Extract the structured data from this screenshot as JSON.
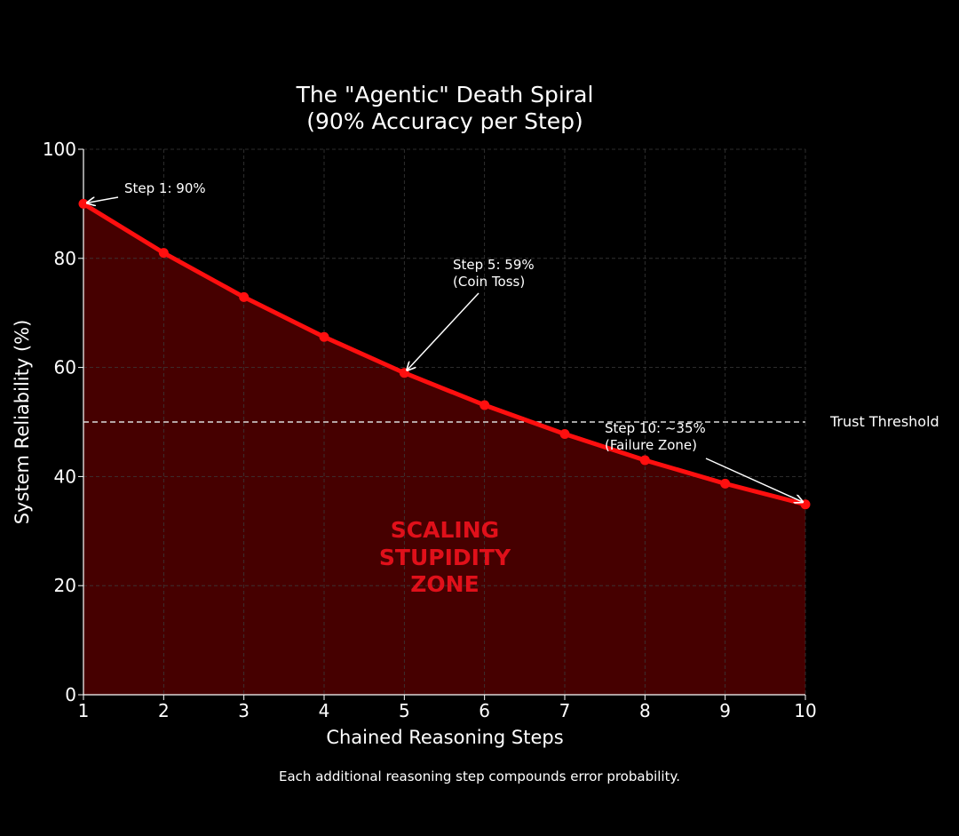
{
  "chart_data": {
    "type": "line",
    "title": [
      "The \"Agentic\" Death Spiral",
      "(90% Accuracy per Step)"
    ],
    "xlabel": "Chained Reasoning Steps",
    "ylabel": "System Reliability (%)",
    "xlim": [
      1,
      10
    ],
    "ylim": [
      0,
      100
    ],
    "xticks": [
      "1",
      "2",
      "3",
      "4",
      "5",
      "6",
      "7",
      "8",
      "9",
      "10"
    ],
    "yticks": [
      "0",
      "20",
      "40",
      "60",
      "80",
      "100"
    ],
    "grid": true,
    "series": [
      {
        "name": "System Reliability",
        "x": [
          1,
          2,
          3,
          4,
          5,
          6,
          7,
          8,
          9,
          10
        ],
        "y": [
          90,
          81,
          72.9,
          65.6,
          59,
          53.1,
          47.8,
          43,
          38.7,
          34.9
        ]
      }
    ],
    "threshold": {
      "value": 50,
      "label": "Trust Threshold"
    },
    "annotations": {
      "step1": {
        "lines": [
          "Step 1: 90%"
        ],
        "x": 1,
        "y": 90
      },
      "step5": {
        "lines": [
          "Step 5: 59%",
          "(Coin Toss)"
        ],
        "x": 5,
        "y": 59
      },
      "step10": {
        "lines": [
          "Step 10: ~35%",
          "(Failure Zone)"
        ],
        "x": 10,
        "y": 35
      }
    },
    "zone_label": [
      "SCALING",
      "STUPIDITY",
      "ZONE"
    ],
    "footnote": "Each additional reasoning step compounds error probability.",
    "colors": {
      "background": "#000000",
      "line": "#ff0f0f",
      "fill": "#4a0000",
      "zone_text": "#e0101a",
      "grid": "#3a3a3a",
      "threshold": "#dcdcdc",
      "text": "#ffffff"
    }
  }
}
